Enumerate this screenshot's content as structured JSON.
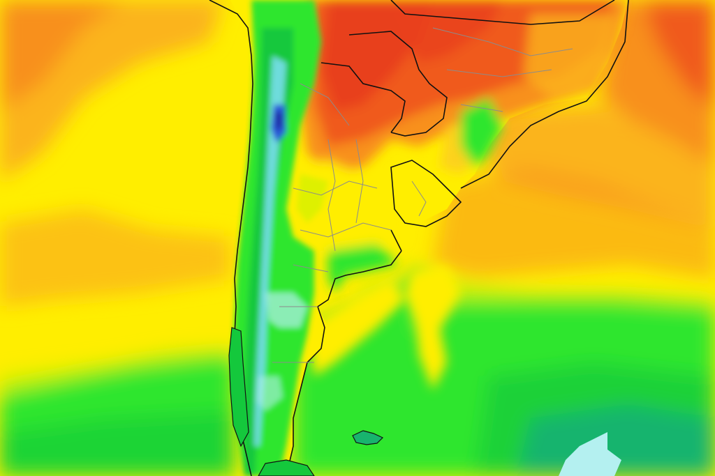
{
  "map": {
    "kind": "temperature-heatmap",
    "region": "southern-south-america",
    "labels_visible": false,
    "palette": {
      "red": "#e8401a",
      "red_orange": "#f05a1e",
      "orange": "#f8901c",
      "orange_yellow": "#fbb41a",
      "yellow_orange": "#fdd21a",
      "yellow": "#ffee00",
      "yellow_green": "#c8f200",
      "green": "#2ee62e",
      "green_dark": "#14c83c",
      "teal": "#18b46e",
      "cyan": "#6edcdc",
      "light_cyan": "#b4f0f0",
      "blue": "#2a5ad8",
      "navy": "#1a2aa0",
      "border_country": "#111111",
      "border_province": "#8c8c8c"
    },
    "layers": [
      "ocean-gradient",
      "land-gradient",
      "andes-cold-band",
      "country-borders",
      "province-borders",
      "islands"
    ]
  }
}
